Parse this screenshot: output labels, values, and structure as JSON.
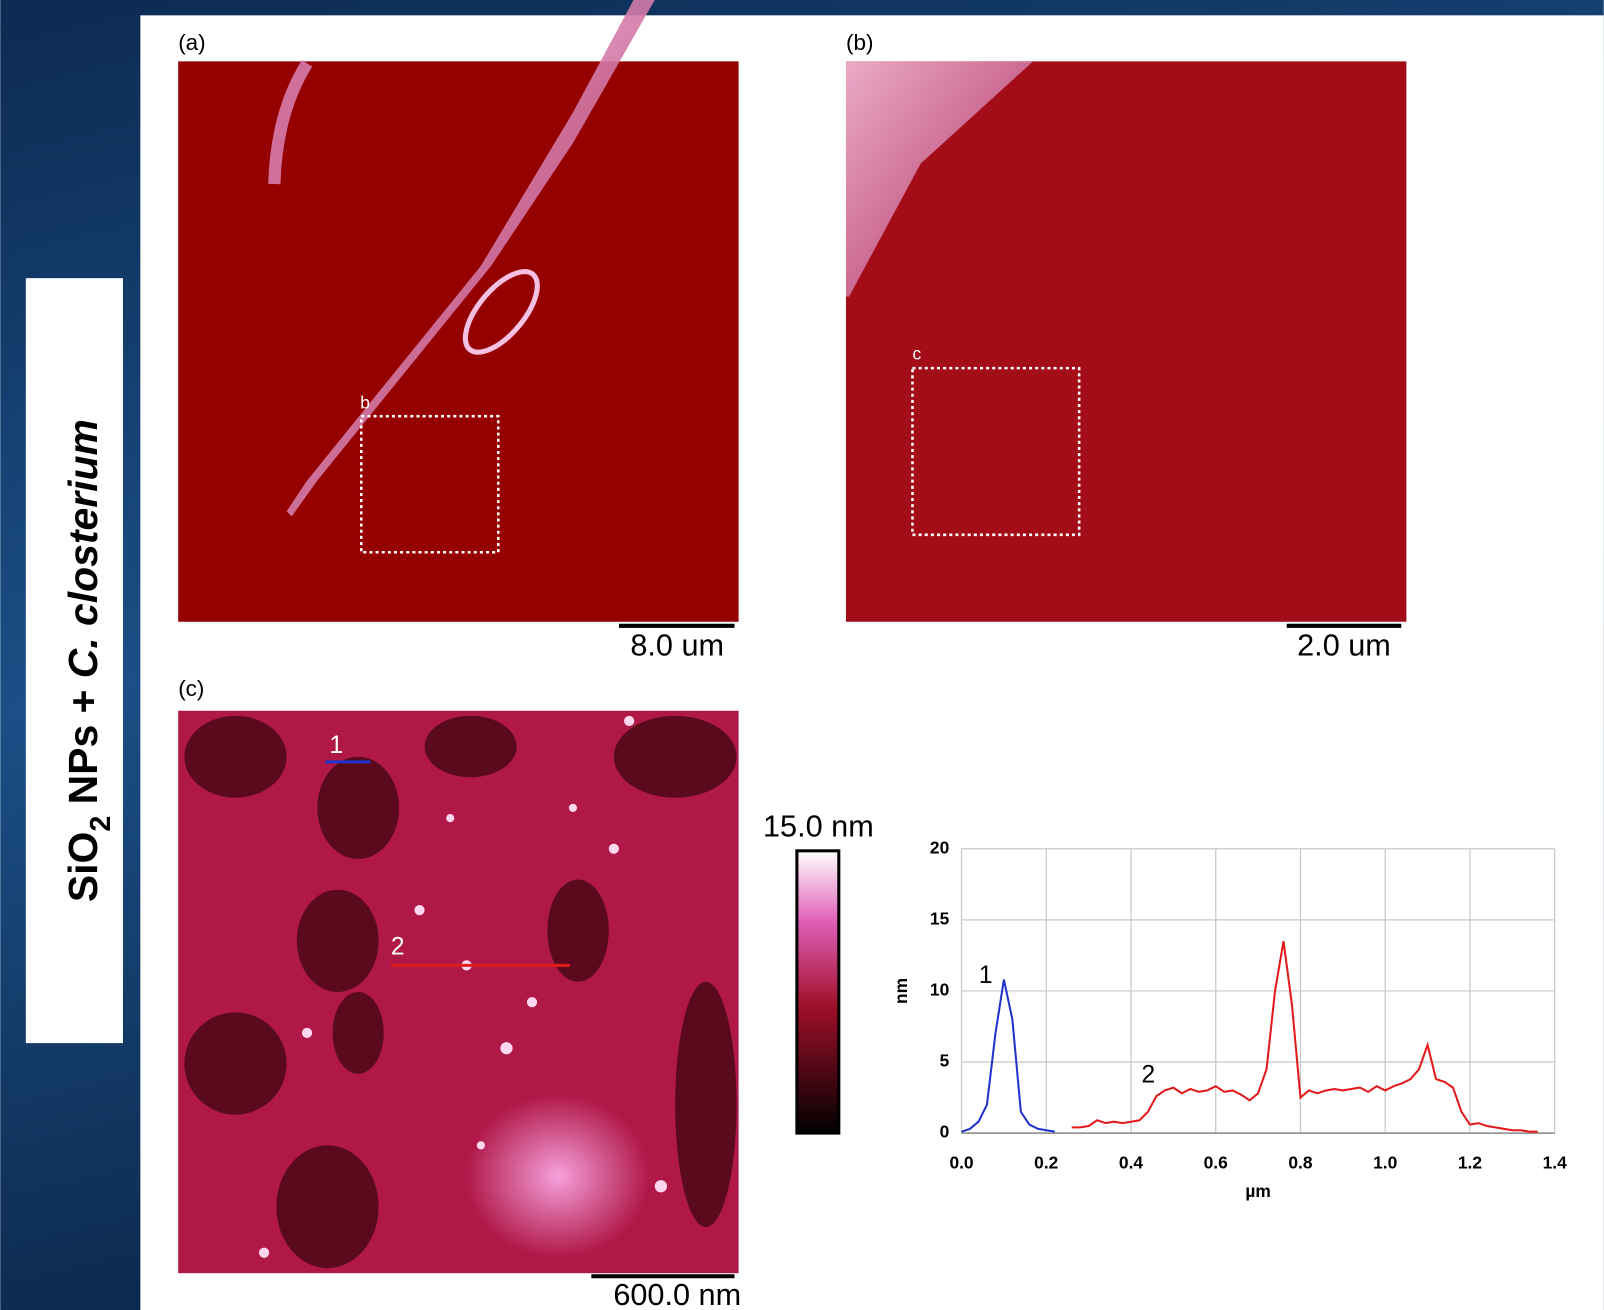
{
  "side_label": {
    "parts": [
      "SiO",
      "2",
      " NPs + ",
      "C. closterium"
    ]
  },
  "panels": [
    {
      "label": "(a)",
      "scale_bar": "8.0 um",
      "roi_label": "b"
    },
    {
      "label": "(b)",
      "scale_bar": "2.0 um",
      "roi_label": "c"
    },
    {
      "label": "(c)",
      "scale_bar": "600.0 nm",
      "profile_labels": [
        "1",
        "2"
      ],
      "colorbar_label": "15.0 nm"
    }
  ],
  "chart_data": {
    "type": "line",
    "x_label": "µm",
    "y_label": "nm",
    "xlim": [
      0,
      1.4
    ],
    "xticks": [
      {
        "value": 0,
        "label": "0.0"
      },
      {
        "value": 0.2,
        "label": "0.2"
      },
      {
        "value": 0.4,
        "label": "0.4"
      },
      {
        "value": 0.6,
        "label": "0.6"
      },
      {
        "value": 0.8,
        "label": "0.8"
      },
      {
        "value": 1,
        "label": "1.0"
      },
      {
        "value": 1.2,
        "label": "1.2"
      },
      {
        "value": 1.4,
        "label": "1.4"
      }
    ],
    "ylim": [
      0,
      20
    ],
    "yticks": [
      0,
      5,
      10,
      15,
      20
    ],
    "grid": true,
    "annotations": [
      "1",
      "2"
    ],
    "series": [
      {
        "color": "#2233cc",
        "x": [
          0,
          0.02,
          0.04,
          0.06,
          0.08,
          0.1,
          0.12,
          0.14,
          0.16,
          0.18,
          0.2,
          0.22
        ],
        "values": [
          0.1,
          0.3,
          0.8,
          2,
          7,
          10.8,
          8,
          1.5,
          0.6,
          0.3,
          0.2,
          0.1
        ]
      },
      {
        "color": "#e31a1c",
        "x": [
          0.26,
          0.28,
          0.3,
          0.32,
          0.34,
          0.36,
          0.38,
          0.4,
          0.42,
          0.44,
          0.46,
          0.48,
          0.5,
          0.52,
          0.54,
          0.56,
          0.58,
          0.6,
          0.62,
          0.64,
          0.66,
          0.68,
          0.7,
          0.72,
          0.74,
          0.76,
          0.78,
          0.8,
          0.82,
          0.84,
          0.86,
          0.88,
          0.9,
          0.92,
          0.94,
          0.96,
          0.98,
          1,
          1.02,
          1.04,
          1.06,
          1.08,
          1.1,
          1.12,
          1.14,
          1.16,
          1.18,
          1.2,
          1.22,
          1.24,
          1.26,
          1.28,
          1.3,
          1.32,
          1.34,
          1.36
        ],
        "values": [
          0.4,
          0.4,
          0.5,
          0.9,
          0.7,
          0.8,
          0.7,
          0.8,
          0.9,
          1.5,
          2.6,
          3,
          3.2,
          2.8,
          3.1,
          2.9,
          3,
          3.3,
          2.9,
          3,
          2.7,
          2.3,
          2.8,
          4.5,
          10,
          13.5,
          9,
          2.5,
          3,
          2.8,
          3,
          3.1,
          3,
          3.1,
          3.2,
          2.9,
          3.3,
          3,
          3.3,
          3.5,
          3.8,
          4.5,
          6.2,
          3.8,
          3.6,
          3.2,
          1.5,
          0.6,
          0.7,
          0.5,
          0.4,
          0.3,
          0.2,
          0.2,
          0.1,
          0.1
        ]
      }
    ]
  }
}
